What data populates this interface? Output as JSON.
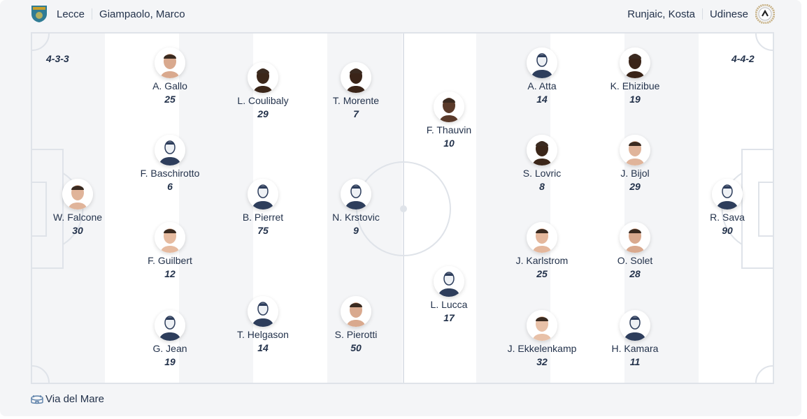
{
  "home": {
    "team": "Lecce",
    "coach": "Giampaolo, Marco",
    "formation": "4-3-3",
    "crest": "lecce-crest-icon",
    "color": "#1f6e8c"
  },
  "away": {
    "team": "Udinese",
    "coach": "Runjaic, Kosta",
    "formation": "4-4-2",
    "crest": "udinese-crest-icon"
  },
  "players": [
    {
      "name": "W. Falcone",
      "number": "30",
      "photo": true
    },
    {
      "name": "A. Gallo",
      "number": "25",
      "photo": true
    },
    {
      "name": "F. Baschirotto",
      "number": "6",
      "photo": false
    },
    {
      "name": "F. Guilbert",
      "number": "12",
      "photo": true
    },
    {
      "name": "G. Jean",
      "number": "19",
      "photo": false
    },
    {
      "name": "L. Coulibaly",
      "number": "29",
      "photo": true
    },
    {
      "name": "B. Pierret",
      "number": "75",
      "photo": false
    },
    {
      "name": "T. Helgason",
      "number": "14",
      "photo": false
    },
    {
      "name": "T. Morente",
      "number": "7",
      "photo": true
    },
    {
      "name": "N. Krstovic",
      "number": "9",
      "photo": false
    },
    {
      "name": "S. Pierotti",
      "number": "50",
      "photo": true
    },
    {
      "name": "F. Thauvin",
      "number": "10",
      "photo": true
    },
    {
      "name": "L. Lucca",
      "number": "17",
      "photo": false
    },
    {
      "name": "A. Atta",
      "number": "14",
      "photo": false
    },
    {
      "name": "S. Lovric",
      "number": "8",
      "photo": true
    },
    {
      "name": "J. Karlstrom",
      "number": "25",
      "photo": true
    },
    {
      "name": "J. Ekkelenkamp",
      "number": "32",
      "photo": true
    },
    {
      "name": "K. Ehizibue",
      "number": "19",
      "photo": true
    },
    {
      "name": "J. Bijol",
      "number": "29",
      "photo": true
    },
    {
      "name": "O. Solet",
      "number": "28",
      "photo": true
    },
    {
      "name": "H. Kamara",
      "number": "11",
      "photo": false
    },
    {
      "name": "R. Sava",
      "number": "90",
      "photo": false
    }
  ],
  "venue": {
    "name": "Via del Mare",
    "icon": "stadium-icon"
  }
}
